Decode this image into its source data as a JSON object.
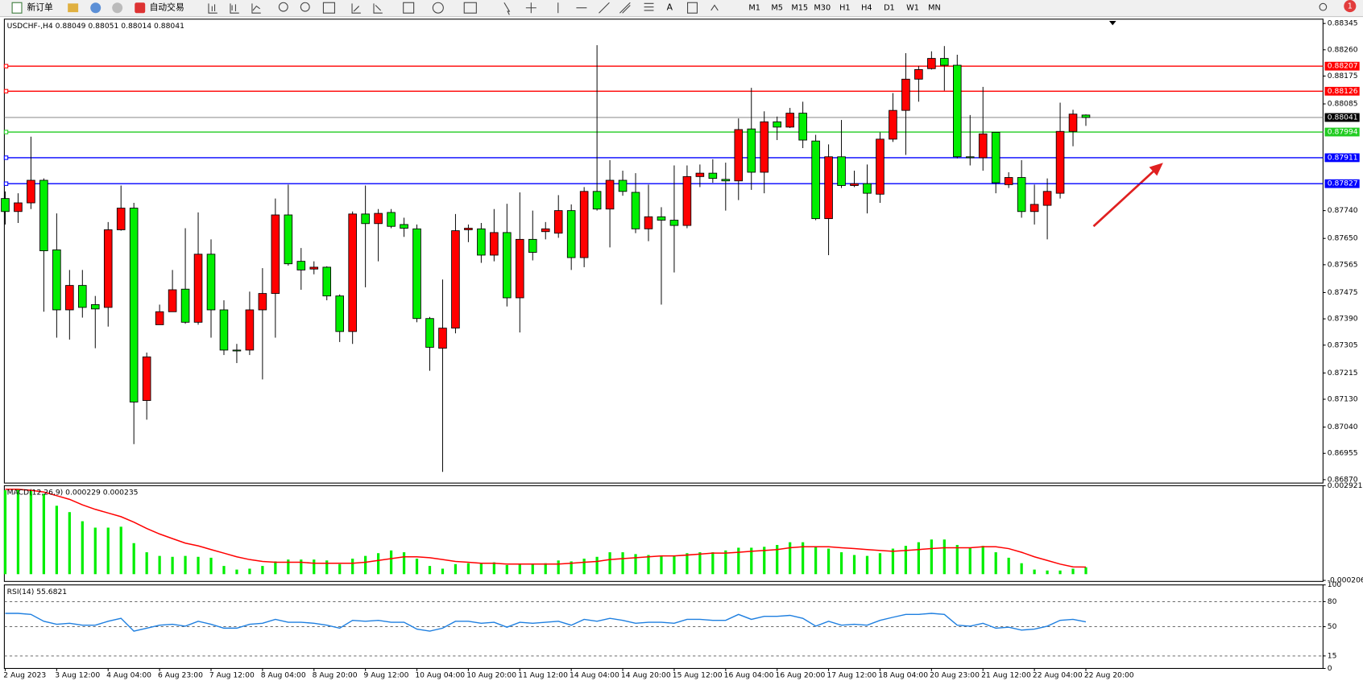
{
  "toolbar": {
    "new_order": "新订单",
    "auto_trading": "自动交易",
    "timeframes": [
      "M1",
      "M5",
      "M15",
      "M30",
      "H1",
      "H4",
      "D1",
      "W1",
      "MN"
    ],
    "badge": "1"
  },
  "chart_data": [
    {
      "type": "candlestick",
      "title": "USDCHF-,H4 0.88049 0.88051 0.88014 0.88041",
      "categories": [
        "2 Aug 2023",
        null,
        null,
        null,
        "3 Aug 12:00",
        null,
        null,
        null,
        "4 Aug 04:00",
        null,
        null,
        null,
        "6 Aug 23:00",
        null,
        null,
        null,
        "7 Aug 12:00",
        null,
        null,
        null,
        "8 Aug 04:00",
        null,
        null,
        null,
        "8 Aug 20:00",
        null,
        null,
        null,
        "9 Aug 12:00",
        null,
        null,
        null,
        "10 Aug 04:00",
        null,
        null,
        null,
        "10 Aug 20:00",
        null,
        null,
        null,
        "11 Aug 12:00",
        null,
        null,
        null,
        "14 Aug 04:00",
        null,
        null,
        null,
        "14 Aug 20:00",
        null,
        null,
        null,
        "15 Aug 12:00",
        null,
        null,
        null,
        "16 Aug 04:00",
        null,
        null,
        null,
        "16 Aug 20:00",
        null,
        null,
        null,
        "17 Aug 12:00",
        null,
        null,
        null,
        "18 Aug 04:00",
        null,
        null,
        null,
        "20 Aug 23:00",
        null,
        null,
        null,
        "21 Aug 12:00",
        null,
        null,
        null,
        "22 Aug 04:00",
        null,
        null,
        null,
        "22 Aug 20:00"
      ],
      "open": [
        0.87779,
        0.87737,
        0.87765,
        0.87838,
        0.87613,
        0.87419,
        0.87498,
        0.87436,
        0.87427,
        0.87678,
        0.87748,
        0.87126,
        0.87371,
        0.87413,
        0.87486,
        0.87379,
        0.87599,
        0.87419,
        0.87289,
        0.87289,
        0.87419,
        0.87472,
        0.87726,
        0.87576,
        0.87551,
        0.87557,
        0.87464,
        0.87349,
        0.87729,
        0.87698,
        0.87734,
        0.87695,
        0.87681,
        0.87391,
        0.87295,
        0.8736,
        0.87678,
        0.87681,
        0.87596,
        0.87669,
        0.87458,
        0.87647,
        0.87672,
        0.87667,
        0.8774,
        0.87588,
        0.87802,
        0.87745,
        0.87838,
        0.87799,
        0.87681,
        0.8772,
        0.87709,
        0.87692,
        0.8785,
        0.87861,
        0.87841,
        0.87836,
        0.88004,
        0.87864,
        0.88027,
        0.8801,
        0.88055,
        0.87965,
        0.87714,
        0.87914,
        0.87821,
        0.87827,
        0.87793,
        0.87971,
        0.88064,
        0.88165,
        0.88199,
        0.88232,
        0.8821,
        0.87914,
        0.87911,
        0.87993,
        0.87824,
        0.87847,
        0.87737,
        0.87757,
        0.87796,
        0.87996,
        0.88049
      ],
      "high": [
        0.87802,
        0.87796,
        0.87979,
        0.87844,
        0.87731,
        0.87548,
        0.87548,
        0.87464,
        0.87703,
        0.87821,
        0.87765,
        0.87281,
        0.87436,
        0.87548,
        0.87683,
        0.87734,
        0.87647,
        0.8745,
        0.87309,
        0.87478,
        0.87554,
        0.87779,
        0.87824,
        0.87619,
        0.87576,
        0.8756,
        0.87469,
        0.87737,
        0.87821,
        0.87745,
        0.87745,
        0.87717,
        0.87695,
        0.87396,
        0.87517,
        0.87729,
        0.87695,
        0.877,
        0.87745,
        0.87762,
        0.87799,
        0.8774,
        0.87703,
        0.8779,
        0.8776,
        0.87816,
        0.88275,
        0.87903,
        0.87869,
        0.87861,
        0.87824,
        0.87751,
        0.87886,
        0.87886,
        0.87889,
        0.87906,
        0.87895,
        0.88038,
        0.88137,
        0.88061,
        0.88044,
        0.88072,
        0.88092,
        0.87985,
        0.87954,
        0.88033,
        0.87869,
        0.87889,
        0.87993,
        0.8812,
        0.88249,
        0.88207,
        0.88255,
        0.88272,
        0.88244,
        0.88049,
        0.8814,
        0.87993,
        0.87864,
        0.87903,
        0.87824,
        0.87844,
        0.88089,
        0.88066,
        0.88051
      ],
      "low": [
        0.87695,
        0.877,
        0.87745,
        0.87413,
        0.87329,
        0.87323,
        0.87394,
        0.87295,
        0.87365,
        0.87675,
        0.86985,
        0.87064,
        0.87371,
        0.87413,
        0.87374,
        0.87371,
        0.87329,
        0.87273,
        0.87247,
        0.87273,
        0.87194,
        0.87329,
        0.87562,
        0.87484,
        0.87534,
        0.8745,
        0.87315,
        0.87309,
        0.87492,
        0.87576,
        0.87683,
        0.87655,
        0.87379,
        0.87222,
        0.86895,
        0.87343,
        0.87638,
        0.87571,
        0.87576,
        0.8743,
        0.87346,
        0.87579,
        0.87647,
        0.87652,
        0.87548,
        0.87557,
        0.8774,
        0.87621,
        0.87788,
        0.87667,
        0.87641,
        0.87436,
        0.8754,
        0.87683,
        0.87816,
        0.8783,
        0.8774,
        0.87774,
        0.87807,
        0.87796,
        0.87968,
        0.88007,
        0.87942,
        0.87709,
        0.87596,
        0.87813,
        0.87816,
        0.87731,
        0.87765,
        0.87962,
        0.8792,
        0.88092,
        0.88196,
        0.88128,
        0.87909,
        0.87886,
        0.87869,
        0.87796,
        0.87813,
        0.87717,
        0.87695,
        0.87647,
        0.87779,
        0.87948,
        0.88014
      ],
      "close": [
        0.87737,
        0.87765,
        0.87838,
        0.8761,
        0.87419,
        0.87498,
        0.87427,
        0.87422,
        0.87678,
        0.87748,
        0.87121,
        0.87267,
        0.87413,
        0.87484,
        0.87379,
        0.87599,
        0.87419,
        0.87289,
        0.87287,
        0.87419,
        0.87472,
        0.87726,
        0.87568,
        0.87548,
        0.87557,
        0.87464,
        0.87349,
        0.87729,
        0.87698,
        0.87731,
        0.87689,
        0.87683,
        0.87391,
        0.87298,
        0.8736,
        0.87675,
        0.87683,
        0.87596,
        0.87669,
        0.87458,
        0.87647,
        0.87605,
        0.87681,
        0.8774,
        0.87588,
        0.87802,
        0.87745,
        0.87838,
        0.87802,
        0.87681,
        0.8772,
        0.87709,
        0.87692,
        0.8785,
        0.87861,
        0.87844,
        0.87836,
        0.88002,
        0.87864,
        0.88027,
        0.8801,
        0.88055,
        0.87968,
        0.87714,
        0.87914,
        0.87821,
        0.87827,
        0.87796,
        0.87971,
        0.88064,
        0.88165,
        0.88196,
        0.88232,
        0.8821,
        0.87914,
        0.87911,
        0.87988,
        0.8783,
        0.87847,
        0.87737,
        0.8776,
        0.87802,
        0.87996,
        0.88052,
        0.88041
      ],
      "up_color": "#ff0000",
      "down_color": "#00ee00",
      "ylim": [
        0.86859,
        0.88359
      ],
      "yticks": [
        0.88345,
        {
          "value": 0.8826,
          "label": "0.88260"
        },
        0.88175,
        0.88085,
        {
          "value": 0.8774,
          "label": "0.87740"
        },
        {
          "value": 0.8765,
          "label": "0.87650"
        },
        0.87565,
        0.87475,
        {
          "value": 0.8739,
          "label": "0.87390"
        },
        0.87305,
        0.87215,
        {
          "value": 0.8713,
          "label": "0.87130"
        },
        {
          "value": 0.8704,
          "label": "0.87040"
        },
        0.86955,
        {
          "value": 0.8687,
          "label": "0.86870"
        }
      ],
      "levels": [
        {
          "value": 0.88207,
          "color": "#ff0000"
        },
        {
          "value": 0.88126,
          "color": "#ff0000"
        },
        {
          "value": 0.87994,
          "color": "#22cc22"
        },
        {
          "value": 0.87911,
          "color": "#0000ff"
        },
        {
          "value": 0.87827,
          "color": "#0000ff"
        }
      ]
    },
    {
      "type": "macd",
      "title": "MACD(12,26,9) 0.000229 0.000235",
      "histogram": [
        0.00277,
        0.002801,
        0.00277,
        0.00265,
        0.002258,
        0.002048,
        0.001747,
        0.001536,
        0.001536,
        0.001566,
        0.001024,
        0.000723,
        0.000602,
        0.000572,
        0.000602,
        0.000572,
        0.000542,
        0.000271,
        0.000151,
        0.000181,
        0.000271,
        0.000422,
        0.000482,
        0.000482,
        0.000482,
        0.000452,
        0.000331,
        0.000512,
        0.000602,
        0.000693,
        0.000783,
        0.000723,
        0.000512,
        0.000271,
        0.000181,
        0.000331,
        0.000361,
        0.000361,
        0.000391,
        0.000301,
        0.000331,
        0.000331,
        0.000361,
        0.000452,
        0.000422,
        0.000512,
        0.000572,
        0.000723,
        0.000723,
        0.000662,
        0.000632,
        0.000602,
        0.000602,
        0.000693,
        0.000723,
        0.000723,
        0.000783,
        0.000873,
        0.000873,
        0.000903,
        0.000964,
        0.001054,
        0.001054,
        0.000903,
        0.000843,
        0.000723,
        0.000632,
        0.000602,
        0.000693,
        0.000843,
        0.000934,
        0.001054,
        0.001144,
        0.001144,
        0.000964,
        0.000873,
        0.000934,
        0.000723,
        0.000542,
        0.000361,
        0.000151,
        0.00012,
        0.00012,
        0.000181,
        0.000229
      ],
      "signal": [
        0.002801,
        0.002801,
        0.00277,
        0.00271,
        0.00259,
        0.002469,
        0.002289,
        0.002138,
        0.002018,
        0.001897,
        0.001716,
        0.001506,
        0.001325,
        0.001174,
        0.001024,
        0.000934,
        0.000813,
        0.000693,
        0.000572,
        0.000482,
        0.000422,
        0.000391,
        0.000391,
        0.000391,
        0.000361,
        0.000361,
        0.000361,
        0.000361,
        0.000391,
        0.000452,
        0.000512,
        0.000572,
        0.000572,
        0.000542,
        0.000482,
        0.000422,
        0.000391,
        0.000361,
        0.000361,
        0.000331,
        0.000331,
        0.000331,
        0.000331,
        0.000331,
        0.000361,
        0.000391,
        0.000422,
        0.000482,
        0.000512,
        0.000542,
        0.000572,
        0.000602,
        0.000602,
        0.000632,
        0.000662,
        0.000693,
        0.000693,
        0.000723,
        0.000753,
        0.000783,
        0.000813,
        0.000873,
        0.000903,
        0.000903,
        0.000903,
        0.000873,
        0.000843,
        0.000813,
        0.000783,
        0.000753,
        0.000783,
        0.000813,
        0.000843,
        0.000873,
        0.000873,
        0.000873,
        0.000903,
        0.000903,
        0.000843,
        0.000723,
        0.000572,
        0.000452,
        0.000331,
        0.000241,
        0.000235
      ],
      "histogram_color": "#00ee00",
      "signal_color": "#ff0000",
      "ylim": [
        -0.00024,
        0.002921
      ],
      "yticks": [
        0.002921,
        -0.000206
      ]
    },
    {
      "type": "line",
      "title": "RSI(14) 55.6821",
      "values": [
        65.9,
        65.9,
        64.7,
        56.5,
        52.9,
        54.1,
        51.8,
        51.8,
        56.5,
        60,
        44.7,
        48.2,
        51.8,
        52.9,
        50.6,
        56.5,
        52.9,
        48.2,
        48.2,
        52.9,
        54.1,
        58.8,
        55.3,
        55.3,
        54.1,
        51.8,
        48.2,
        57.6,
        56.5,
        57.6,
        55.3,
        55.3,
        47.1,
        44.7,
        48.2,
        56.5,
        56.5,
        54.1,
        55.3,
        49.4,
        55.3,
        54.1,
        55.3,
        56.5,
        51.8,
        58.8,
        56.5,
        60,
        57.6,
        54.1,
        55.3,
        55.3,
        54.1,
        58.8,
        58.8,
        57.6,
        57.6,
        64.7,
        58.8,
        62.4,
        62.4,
        63.5,
        60,
        50.6,
        56.5,
        51.8,
        52.9,
        51.8,
        57.6,
        61.2,
        64.7,
        64.7,
        65.9,
        64.7,
        51.8,
        50.6,
        54.1,
        48.2,
        49.4,
        45.9,
        47.1,
        50.6,
        57.6,
        58.8,
        55.6821
      ],
      "color": "#1e7fe0",
      "ylim": [
        0,
        100
      ],
      "yticks": [
        100,
        80,
        50,
        15,
        0
      ]
    }
  ]
}
